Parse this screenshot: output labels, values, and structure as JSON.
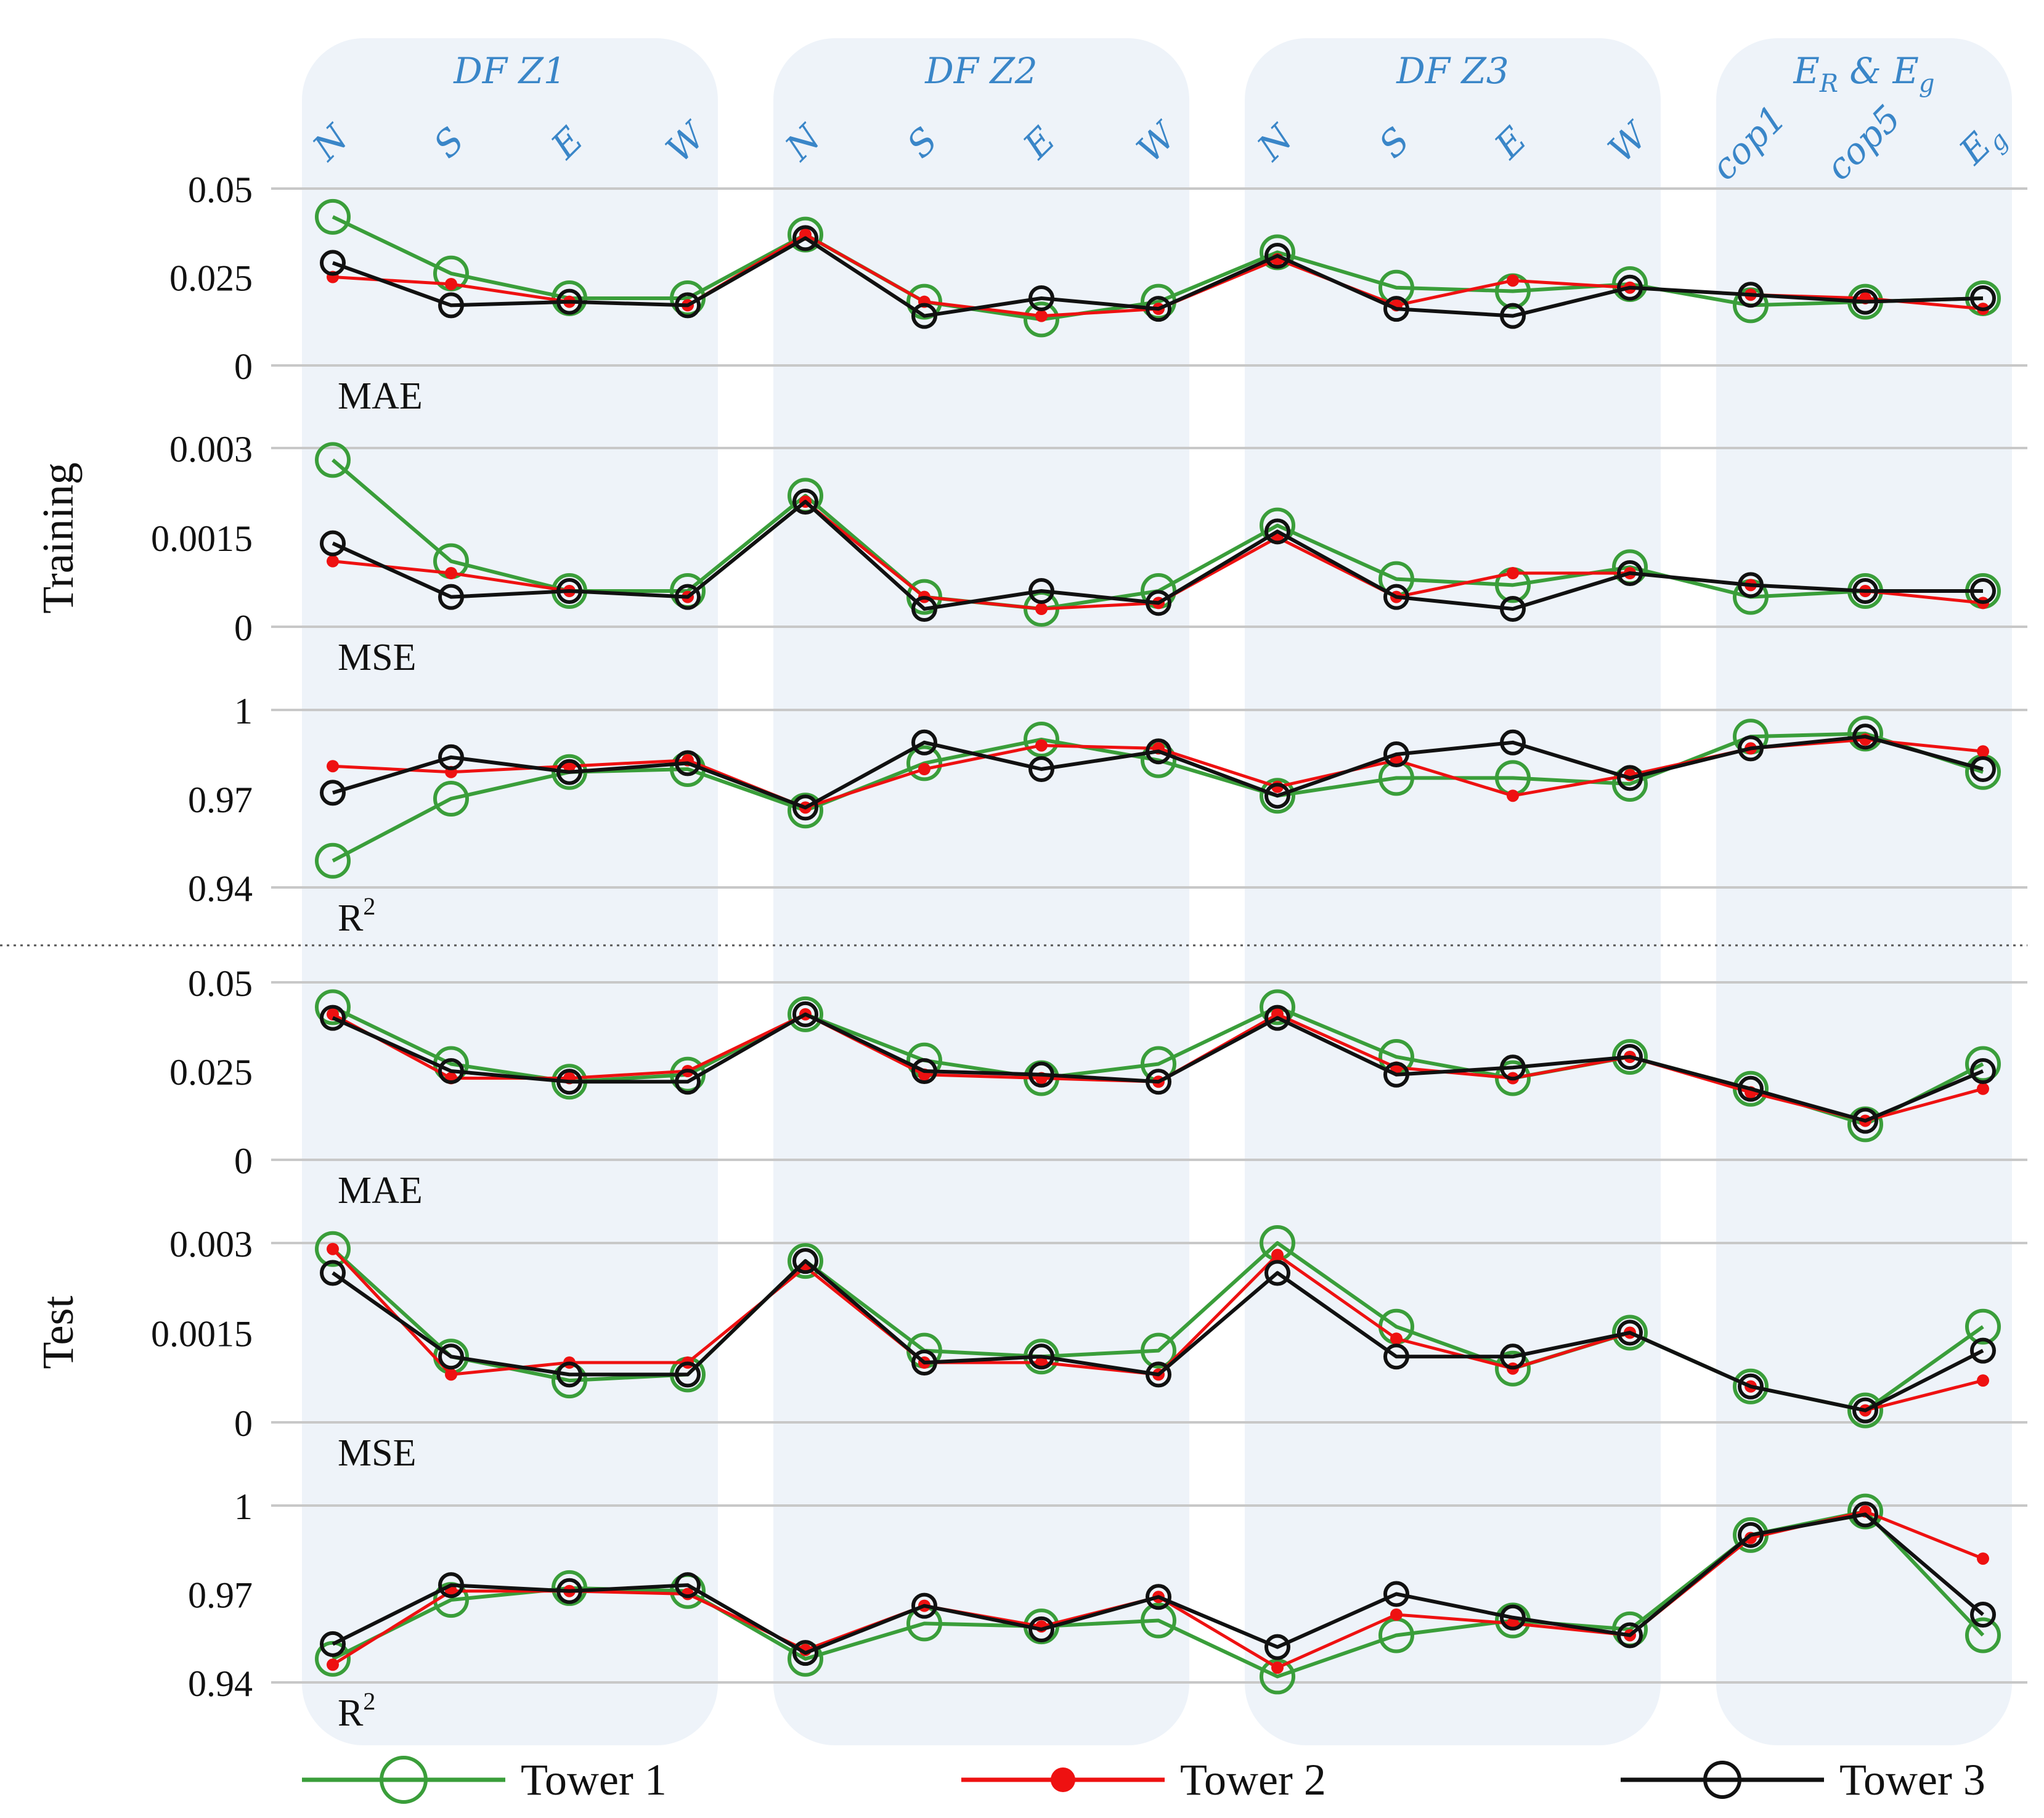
{
  "chart_data": {
    "type": "line",
    "groups": [
      {
        "title": "DF Z1",
        "categories": [
          "N",
          "S",
          "E",
          "W"
        ]
      },
      {
        "title": "DF Z2",
        "categories": [
          "N",
          "S",
          "E",
          "W"
        ]
      },
      {
        "title": "DF Z3",
        "categories": [
          "N",
          "S",
          "E",
          "W"
        ]
      },
      {
        "title": "E_R & E_g",
        "title_parts": [
          "E",
          "R",
          " & ",
          "E",
          "g"
        ],
        "categories": [
          "cop1",
          "cop5",
          "E_g"
        ],
        "category_parts": [
          [
            "cop1",
            ""
          ],
          [
            "cop5",
            ""
          ],
          [
            "E",
            "g"
          ]
        ]
      }
    ],
    "legend": [
      "Tower 1",
      "Tower 2",
      "Tower 3"
    ],
    "colors": {
      "tower1": "#3a9e3a",
      "tower2": "#ee1111",
      "tower3": "#111111",
      "grid": "#c8c8c8",
      "title": "#3a86c8",
      "band": "#eef3f9"
    },
    "sections": [
      {
        "name": "Training",
        "panels": [
          {
            "metric": "MAE",
            "ylim": [
              0,
              0.05
            ],
            "ticks": [
              {
                "v": 0.05,
                "label": "0.05"
              },
              {
                "v": 0.025,
                "label": "0.025"
              },
              {
                "v": 0,
                "label": "0"
              }
            ],
            "series": [
              {
                "name": "Tower 1",
                "values": [
                  0.042,
                  0.026,
                  0.019,
                  0.019,
                  0.037,
                  0.018,
                  0.013,
                  0.018,
                  0.032,
                  0.022,
                  0.021,
                  0.023,
                  0.017,
                  0.018,
                  0.019
                ]
              },
              {
                "name": "Tower 2",
                "values": [
                  0.025,
                  0.023,
                  0.018,
                  0.017,
                  0.037,
                  0.018,
                  0.014,
                  0.016,
                  0.03,
                  0.017,
                  0.024,
                  0.022,
                  0.02,
                  0.019,
                  0.016
                ]
              },
              {
                "name": "Tower 3",
                "values": [
                  0.029,
                  0.017,
                  0.018,
                  0.017,
                  0.036,
                  0.014,
                  0.019,
                  0.016,
                  0.031,
                  0.016,
                  0.014,
                  0.022,
                  0.02,
                  0.018,
                  0.019
                ]
              }
            ]
          },
          {
            "metric": "MSE",
            "ylim": [
              0,
              0.003
            ],
            "ticks": [
              {
                "v": 0.003,
                "label": "0.003"
              },
              {
                "v": 0.0015,
                "label": "0.0015"
              },
              {
                "v": 0,
                "label": "0"
              }
            ],
            "series": [
              {
                "name": "Tower 1",
                "values": [
                  0.0028,
                  0.0011,
                  0.0006,
                  0.0006,
                  0.0022,
                  0.0005,
                  0.0003,
                  0.0006,
                  0.0017,
                  0.0008,
                  0.0007,
                  0.001,
                  0.0005,
                  0.0006,
                  0.0006
                ]
              },
              {
                "name": "Tower 2",
                "values": [
                  0.0011,
                  0.0009,
                  0.0006,
                  0.0005,
                  0.0021,
                  0.0005,
                  0.0003,
                  0.0004,
                  0.0015,
                  0.0005,
                  0.0009,
                  0.0009,
                  0.0007,
                  0.0006,
                  0.0004
                ]
              },
              {
                "name": "Tower 3",
                "values": [
                  0.0014,
                  0.0005,
                  0.0006,
                  0.0005,
                  0.0021,
                  0.0003,
                  0.0006,
                  0.0004,
                  0.0016,
                  0.0005,
                  0.0003,
                  0.0009,
                  0.0007,
                  0.0006,
                  0.0006
                ]
              }
            ]
          },
          {
            "metric": "R²",
            "ylim": [
              0.94,
              1.0
            ],
            "ticks": [
              {
                "v": 1,
                "label": "1"
              },
              {
                "v": 0.97,
                "label": "0.97"
              },
              {
                "v": 0.94,
                "label": "0.94"
              }
            ],
            "series": [
              {
                "name": "Tower 1",
                "values": [
                  0.949,
                  0.97,
                  0.979,
                  0.98,
                  0.966,
                  0.982,
                  0.99,
                  0.983,
                  0.971,
                  0.977,
                  0.977,
                  0.975,
                  0.991,
                  0.992,
                  0.979
                ]
              },
              {
                "name": "Tower 2",
                "values": [
                  0.981,
                  0.979,
                  0.981,
                  0.983,
                  0.967,
                  0.98,
                  0.988,
                  0.987,
                  0.974,
                  0.983,
                  0.971,
                  0.978,
                  0.987,
                  0.99,
                  0.986
                ]
              },
              {
                "name": "Tower 3",
                "values": [
                  0.972,
                  0.984,
                  0.979,
                  0.982,
                  0.967,
                  0.989,
                  0.98,
                  0.986,
                  0.971,
                  0.985,
                  0.989,
                  0.977,
                  0.987,
                  0.991,
                  0.98
                ]
              }
            ]
          }
        ]
      },
      {
        "name": "Test",
        "panels": [
          {
            "metric": "MAE",
            "ylim": [
              0,
              0.05
            ],
            "ticks": [
              {
                "v": 0.05,
                "label": "0.05"
              },
              {
                "v": 0.025,
                "label": "0.025"
              },
              {
                "v": 0,
                "label": "0"
              }
            ],
            "series": [
              {
                "name": "Tower 1",
                "values": [
                  0.043,
                  0.027,
                  0.022,
                  0.024,
                  0.041,
                  0.028,
                  0.023,
                  0.027,
                  0.043,
                  0.029,
                  0.023,
                  0.029,
                  0.02,
                  0.01,
                  0.027
                ]
              },
              {
                "name": "Tower 2",
                "values": [
                  0.041,
                  0.023,
                  0.023,
                  0.025,
                  0.041,
                  0.024,
                  0.023,
                  0.022,
                  0.041,
                  0.026,
                  0.023,
                  0.029,
                  0.019,
                  0.011,
                  0.02
                ]
              },
              {
                "name": "Tower 3",
                "values": [
                  0.04,
                  0.025,
                  0.022,
                  0.022,
                  0.041,
                  0.025,
                  0.024,
                  0.022,
                  0.04,
                  0.024,
                  0.026,
                  0.029,
                  0.02,
                  0.011,
                  0.025
                ]
              }
            ]
          },
          {
            "metric": "MSE",
            "ylim": [
              0,
              0.003
            ],
            "ticks": [
              {
                "v": 0.003,
                "label": "0.003"
              },
              {
                "v": 0.0015,
                "label": "0.0015"
              },
              {
                "v": 0,
                "label": "0"
              }
            ],
            "series": [
              {
                "name": "Tower 1",
                "values": [
                  0.0029,
                  0.0011,
                  0.0007,
                  0.0008,
                  0.0027,
                  0.0012,
                  0.0011,
                  0.0012,
                  0.003,
                  0.0016,
                  0.0009,
                  0.0015,
                  0.0006,
                  0.0002,
                  0.0016
                ]
              },
              {
                "name": "Tower 2",
                "values": [
                  0.0029,
                  0.0008,
                  0.001,
                  0.001,
                  0.0026,
                  0.001,
                  0.001,
                  0.0008,
                  0.0028,
                  0.0014,
                  0.0009,
                  0.0015,
                  0.0006,
                  0.0002,
                  0.0007
                ]
              },
              {
                "name": "Tower 3",
                "values": [
                  0.0025,
                  0.0011,
                  0.0008,
                  0.0008,
                  0.0027,
                  0.001,
                  0.0011,
                  0.0008,
                  0.0025,
                  0.0011,
                  0.0011,
                  0.0015,
                  0.0006,
                  0.0002,
                  0.0012
                ]
              }
            ]
          },
          {
            "metric": "R²",
            "ylim": [
              0.94,
              1.0
            ],
            "ticks": [
              {
                "v": 1,
                "label": "1"
              },
              {
                "v": 0.97,
                "label": "0.97"
              },
              {
                "v": 0.94,
                "label": "0.94"
              }
            ],
            "series": [
              {
                "name": "Tower 1",
                "values": [
                  0.948,
                  0.968,
                  0.972,
                  0.971,
                  0.948,
                  0.96,
                  0.959,
                  0.961,
                  0.942,
                  0.956,
                  0.961,
                  0.958,
                  0.99,
                  0.998,
                  0.956
                ]
              },
              {
                "name": "Tower 2",
                "values": [
                  0.946,
                  0.971,
                  0.971,
                  0.97,
                  0.951,
                  0.966,
                  0.959,
                  0.969,
                  0.945,
                  0.963,
                  0.96,
                  0.956,
                  0.989,
                  0.998,
                  0.982
                ]
              },
              {
                "name": "Tower 3",
                "values": [
                  0.953,
                  0.973,
                  0.971,
                  0.973,
                  0.95,
                  0.966,
                  0.958,
                  0.969,
                  0.952,
                  0.97,
                  0.962,
                  0.956,
                  0.99,
                  0.997,
                  0.963
                ]
              }
            ]
          }
        ]
      }
    ]
  }
}
